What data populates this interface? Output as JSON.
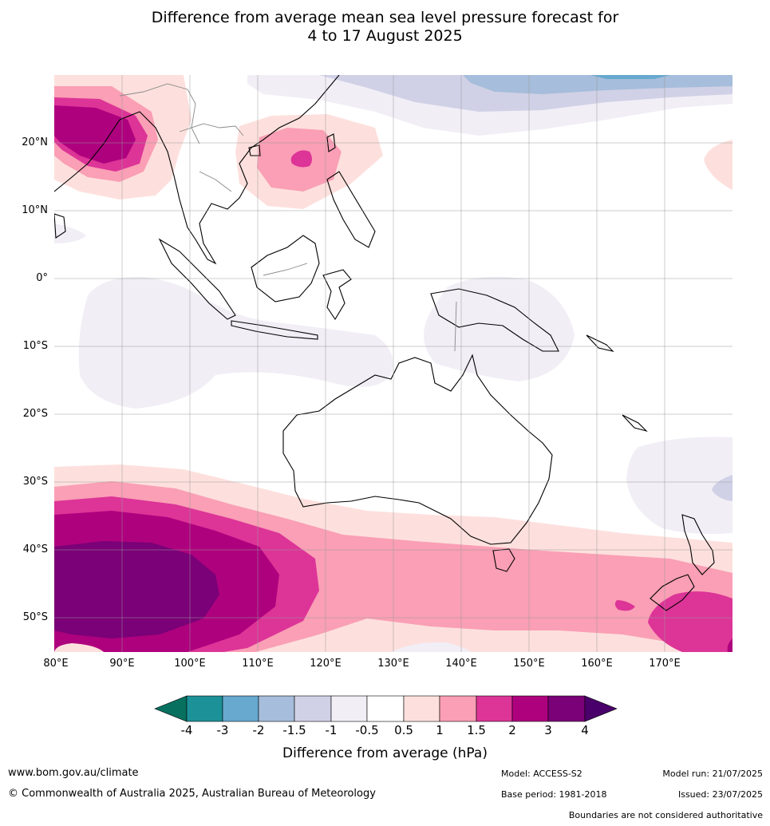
{
  "title": {
    "line1": "Difference from average mean sea level pressure forecast for",
    "line2": "4 to 17 August 2025"
  },
  "lat_labels": [
    "20°N",
    "10°N",
    "0°",
    "10°S",
    "20°S",
    "30°S",
    "40°S",
    "50°S"
  ],
  "lon_labels": [
    "80°E",
    "90°E",
    "100°E",
    "110°E",
    "120°E",
    "130°E",
    "140°E",
    "150°E",
    "160°E",
    "170°E"
  ],
  "colorbar": {
    "label": "Difference from average (hPa)",
    "ticks": [
      "-4",
      "-3",
      "-2",
      "-1.5",
      "-1",
      "-0.5",
      "0.5",
      "1",
      "1.5",
      "2",
      "3",
      "4"
    ],
    "colors": [
      "#07705f",
      "#1d9198",
      "#67a9cf",
      "#a6bddb",
      "#d0d1e6",
      "#f1eef6",
      "#ffffff",
      "#fde0dd",
      "#fa9fb5",
      "#dd3497",
      "#ae017e",
      "#7a0177",
      "#49006a"
    ]
  },
  "footer": {
    "website": "www.bom.gov.au/climate",
    "copyright": "© Commonwealth of Australia 2025, Australian Bureau of Meteorology",
    "model": "Model: ACCESS-S2",
    "model_run": "Model run: 21/07/2025",
    "base_period": "Base period: 1981-2018",
    "issued": "Issued: 23/07/2025",
    "disclaimer": "Boundaries are not considered authoritative"
  }
}
